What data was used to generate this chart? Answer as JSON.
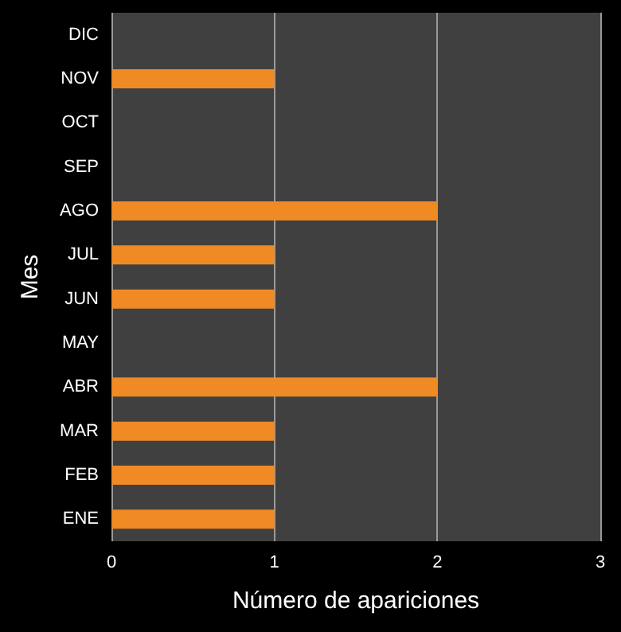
{
  "chart_data": {
    "type": "bar",
    "orientation": "horizontal",
    "xlabel": "Número de apariciones",
    "ylabel": "Mes",
    "categories": [
      "DIC",
      "NOV",
      "OCT",
      "SEP",
      "AGO",
      "JUL",
      "JUN",
      "MAY",
      "ABR",
      "MAR",
      "FEB",
      "ENE"
    ],
    "values": [
      0,
      1,
      0,
      0,
      2,
      1,
      1,
      0,
      2,
      1,
      1,
      1
    ],
    "color": "#f08a24",
    "xlim": [
      0,
      3
    ],
    "xticks": [
      0,
      1,
      2,
      3
    ],
    "grid": "x"
  }
}
